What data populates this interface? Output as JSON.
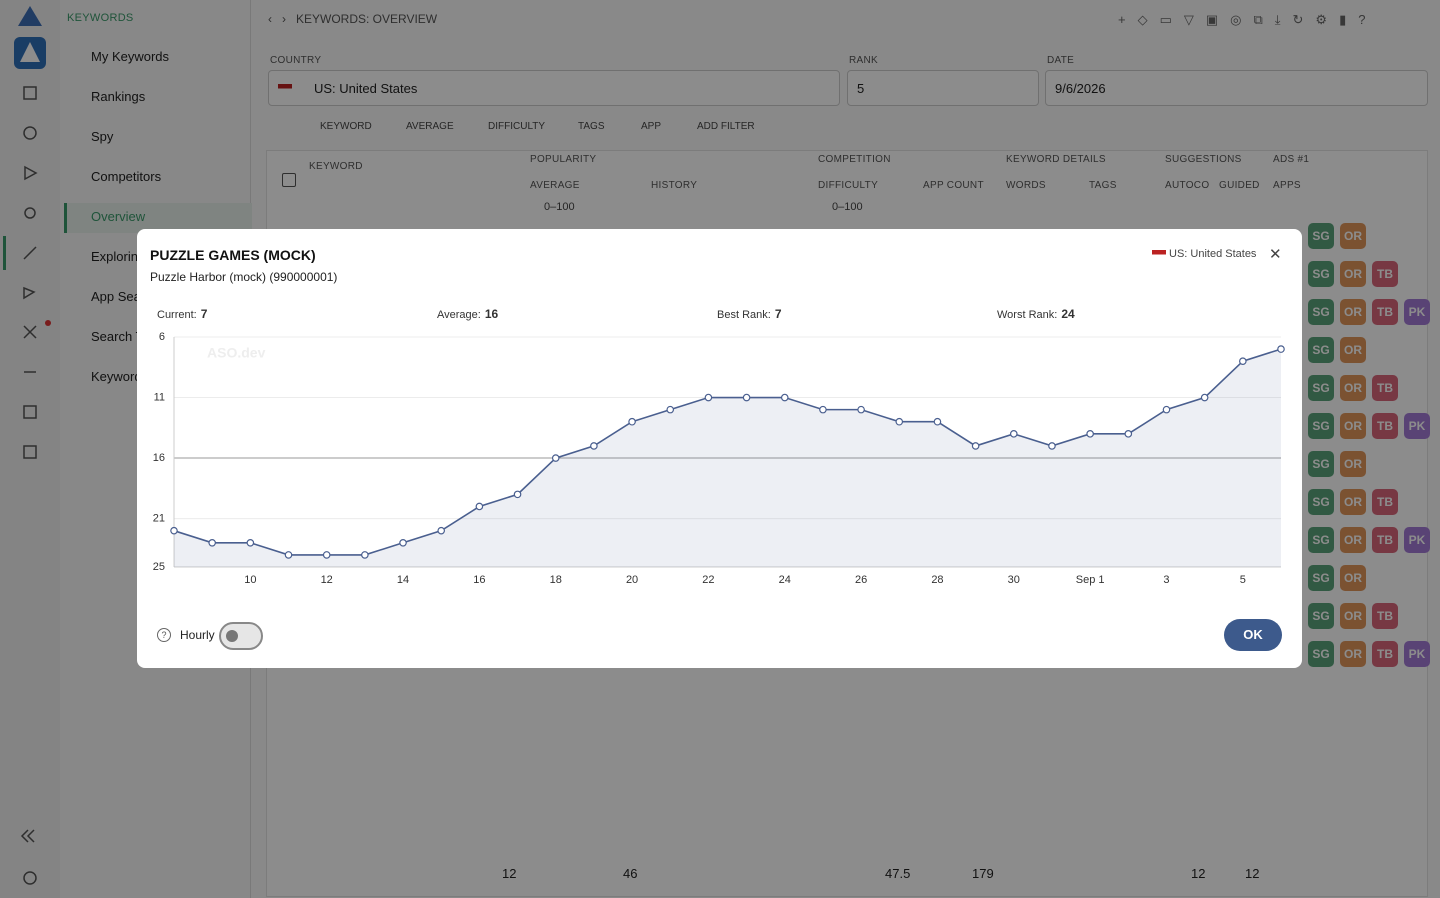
{
  "app": {
    "section": "KEYWORDS",
    "breadcrumb": "KEYWORDS: OVERVIEW",
    "nav": [
      "My Keywords",
      "Rankings",
      "Spy",
      "Competitors",
      "Overview",
      "Exploring",
      "App Sea",
      "Search T",
      "Keyword"
    ]
  },
  "filters": [
    {
      "label": "COUNTRY",
      "value": "US: United States"
    },
    {
      "label": "RANK",
      "value": 5
    },
    {
      "label": "DATE",
      "value": "9/6/2026"
    }
  ],
  "chips": [
    "KEYWORD",
    "AVERAGE",
    "DIFFICULTY",
    "TAGS",
    "APP",
    "ADD FILTER"
  ],
  "table": {
    "groups": [
      "POPULARITY",
      "COMPETITION",
      "KEYWORD DETAILS",
      "SUGGESTIONS",
      "ADS #1"
    ],
    "columns": [
      "KEYWORD",
      "AVERAGE",
      "HISTORY",
      "DIFFICULTY",
      "APP COUNT",
      "WORDS",
      "TAGS",
      "AUTOCO",
      "GUIDED",
      "APPS"
    ],
    "ranges": [
      "0–100",
      "0–100"
    ],
    "badge_rows": [
      [
        "SG",
        "OR"
      ],
      [
        "SG",
        "OR",
        "TB"
      ],
      [
        "SG",
        "OR",
        "TB",
        "PK"
      ],
      [
        "SG",
        "OR"
      ],
      [
        "SG",
        "OR",
        "TB"
      ],
      [
        "SG",
        "OR",
        "TB",
        "PK"
      ],
      [
        "SG",
        "OR"
      ],
      [
        "SG",
        "OR",
        "TB"
      ],
      [
        "SG",
        "OR",
        "TB",
        "PK"
      ],
      [
        "SG",
        "OR"
      ],
      [
        "SG",
        "OR",
        "TB"
      ],
      [
        "SG",
        "OR",
        "TB",
        "PK"
      ]
    ],
    "totals": [
      12,
      46,
      47.5,
      179,
      12,
      12
    ]
  },
  "modal": {
    "title": "PUZZLE GAMES (MOCK)",
    "subtitle": "Puzzle Harbor (mock) (990000001)",
    "country": "US: United States",
    "stats": [
      {
        "label": "Current:",
        "value": 7
      },
      {
        "label": "Average:",
        "value": 16
      },
      {
        "label": "Best Rank:",
        "value": 7
      },
      {
        "label": "Worst Rank:",
        "value": 24
      }
    ],
    "watermark": "ASO.dev",
    "toggle": "Hourly",
    "ok": "OK"
  },
  "chart_data": {
    "type": "line",
    "categories": [
      null,
      null,
      "10",
      null,
      "12",
      null,
      "14",
      null,
      "16",
      null,
      "18",
      null,
      "20",
      null,
      "22",
      null,
      "24",
      null,
      "26",
      null,
      "28",
      null,
      "30",
      null,
      "Sep 1",
      null,
      "3",
      null,
      "5",
      null
    ],
    "values": [
      22,
      23,
      23,
      24,
      24,
      24,
      23,
      22,
      20,
      19,
      16,
      15,
      13,
      12,
      11,
      11,
      11,
      12,
      12,
      13,
      13,
      15,
      14,
      15,
      14,
      14,
      12,
      11,
      8,
      7
    ],
    "color": "#4a5f8f",
    "ylim": [
      6,
      25
    ],
    "yticks": [
      6,
      11,
      16,
      21,
      25
    ],
    "inverted": true,
    "grid": true
  }
}
